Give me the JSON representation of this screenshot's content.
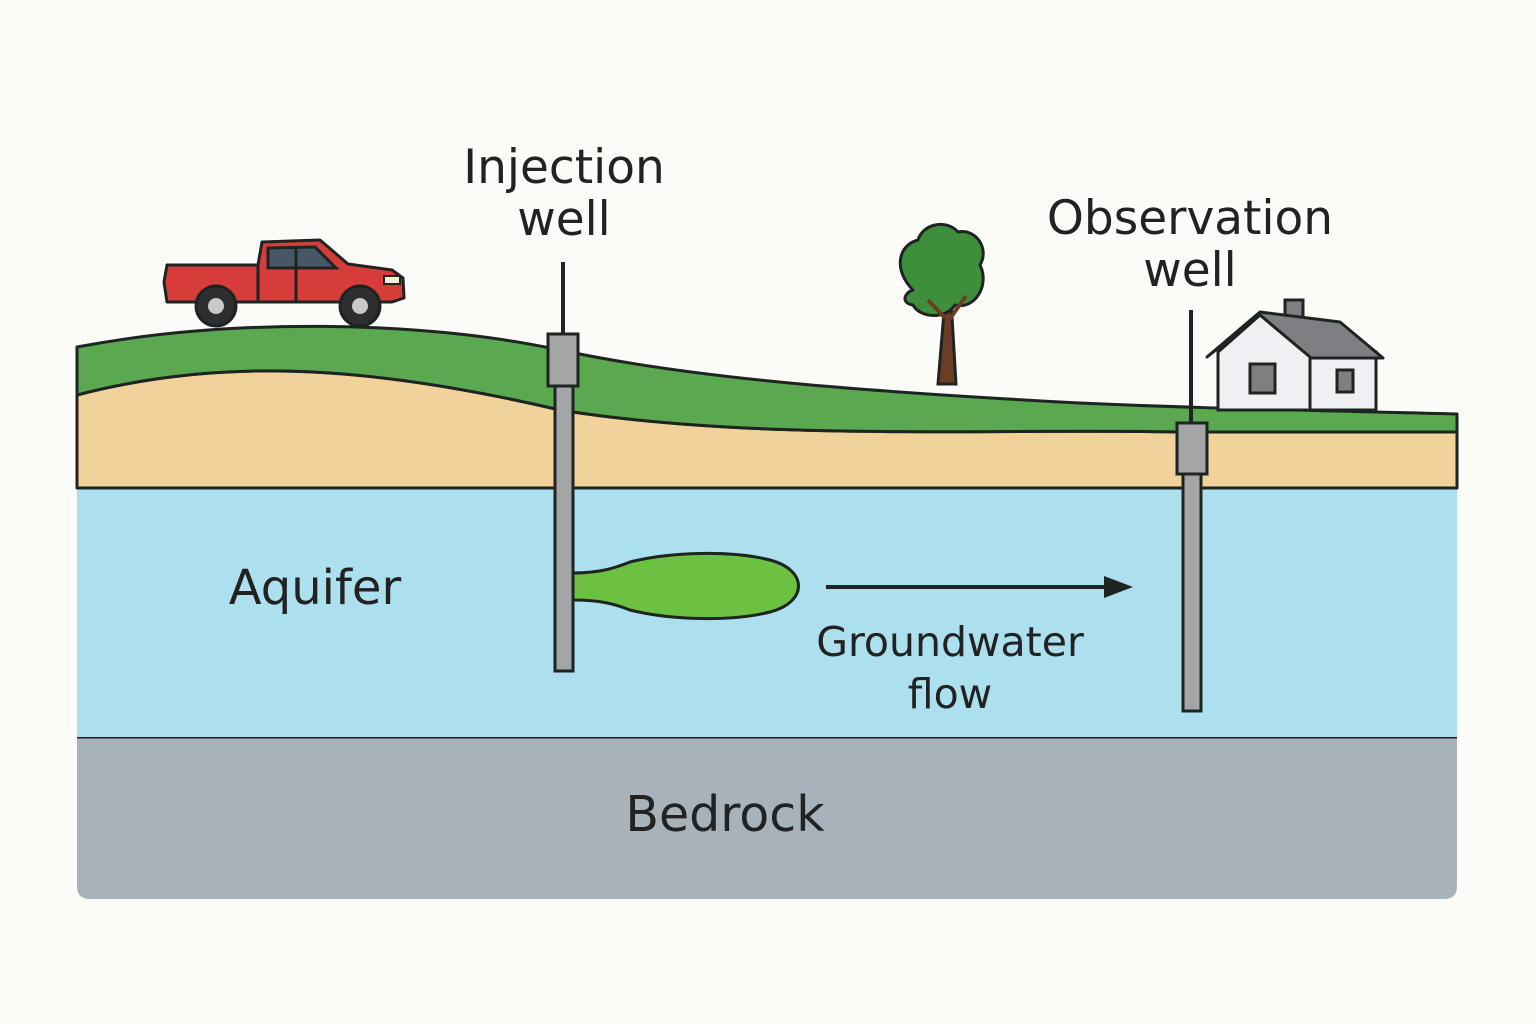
{
  "labels": {
    "injection_well": [
      "Injection",
      "well"
    ],
    "observation_well": [
      "Observation",
      "well"
    ],
    "aquifer": "Aquifer",
    "groundwater_flow": [
      "Groundwater",
      "flow"
    ],
    "bedrock": "Bedrock"
  },
  "colors": {
    "grass": "#5aa84f",
    "sand": "#f0d29a",
    "aquifer": "#ade0ee",
    "bedrock": "#a7b2ba",
    "plume": "#6cc140",
    "truck": "#d63c3a",
    "tree_canopy": "#3e8f3b",
    "tree_trunk": "#6b3d24",
    "house_wall": "#eef0f4",
    "house_roof": "#7d7f82",
    "well_casing": "#a3a5a7",
    "outline": "#1e2422"
  },
  "icons": [
    "pickup-truck-icon",
    "tree-icon",
    "house-icon"
  ]
}
